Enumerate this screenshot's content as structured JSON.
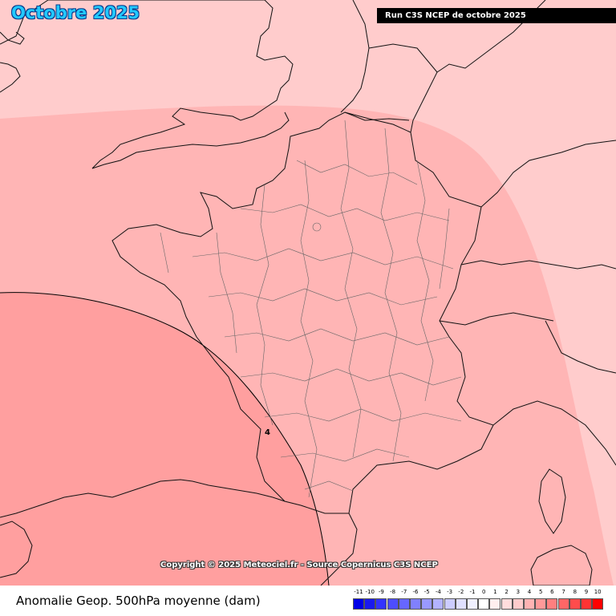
{
  "title": "Octobre 2025",
  "run_label": "Run C3S NCEP de octobre 2025",
  "copyright": "Copyright © 2025 Meteociel.fr - Source Copernicus C3S NCEP",
  "caption": "Anomalie Geop. 500hPa moyenne (dam)",
  "contour_label": "4",
  "colors": {
    "band_0_1": "#ffcccc",
    "band_2_3": "#ffb5b5",
    "band_4_5": "#ff9999",
    "coast": "#111111",
    "departments": "#555555"
  },
  "legend": {
    "labels": [
      "-11",
      "-10",
      "-9",
      "-8",
      "-7",
      "-6",
      "-5",
      "-4",
      "-3",
      "-2",
      "-1",
      "0",
      "1",
      "2",
      "3",
      "4",
      "5",
      "6",
      "7",
      "8",
      "9",
      "10"
    ],
    "colors": [
      "#0000e6",
      "#1a1aee",
      "#3333ff",
      "#4d4dff",
      "#6666ff",
      "#8080ff",
      "#9999ff",
      "#b3b3ff",
      "#ccccff",
      "#e0e0ff",
      "#f0f0ff",
      "#ffffff",
      "#ffeeee",
      "#ffdddd",
      "#ffcccc",
      "#ffb3b3",
      "#ff9999",
      "#ff7f7f",
      "#ff6666",
      "#ff4c4c",
      "#ff3333",
      "#ff0000"
    ]
  }
}
